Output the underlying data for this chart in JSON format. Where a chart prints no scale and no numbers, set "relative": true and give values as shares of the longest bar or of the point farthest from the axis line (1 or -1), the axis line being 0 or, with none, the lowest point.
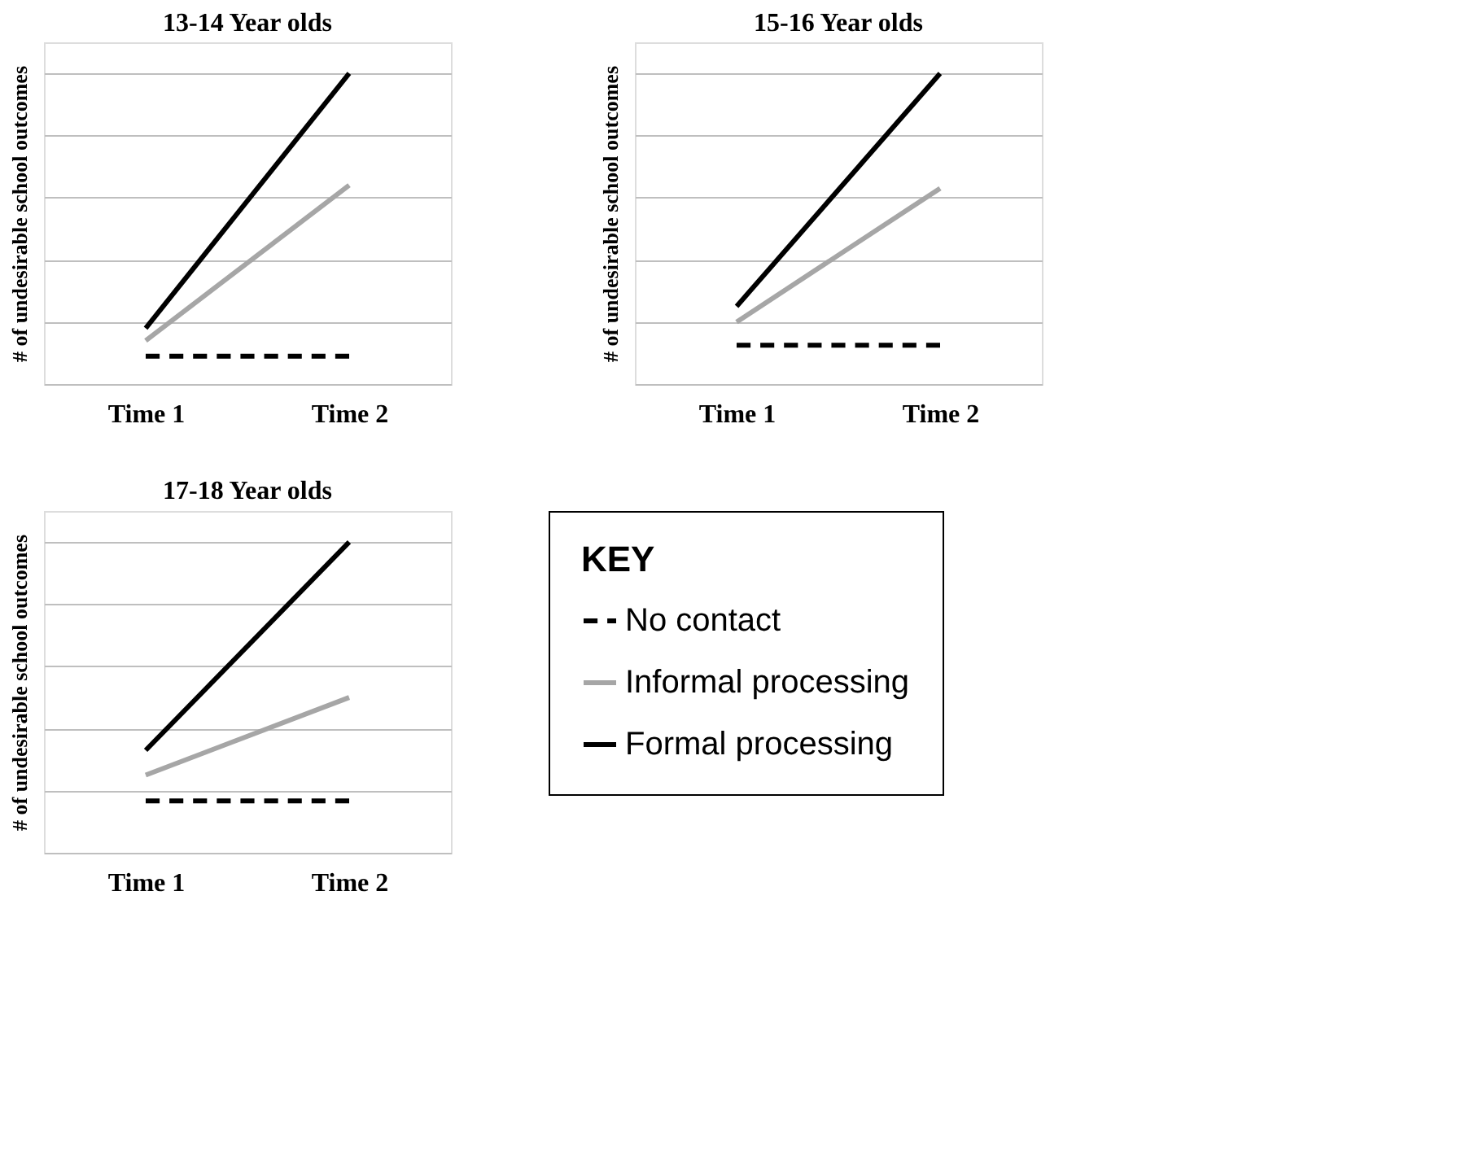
{
  "chart_data": [
    {
      "type": "line",
      "title": "13-14 Year olds",
      "ylabel": "# of undesirable school outcomes",
      "categories": [
        "Time 1",
        "Time 2"
      ],
      "relative": true,
      "grid": "y",
      "legend": false,
      "tick_labels": "x",
      "series": [
        {
          "color": "#000000",
          "line_style": "dashed",
          "values": [
            0.09,
            0.09
          ]
        },
        {
          "color": "#a6a6a6",
          "line_style": "solid",
          "values": [
            0.14,
            0.64
          ]
        },
        {
          "color": "#000000",
          "line_style": "solid",
          "values": [
            0.18,
            1
          ]
        }
      ]
    },
    {
      "type": "line",
      "title": "15-16 Year olds",
      "ylabel": "# of undesirable school outcomes",
      "categories": [
        "Time 1",
        "Time 2"
      ],
      "relative": true,
      "grid": "y",
      "legend": false,
      "tick_labels": "x",
      "series": [
        {
          "color": "#000000",
          "line_style": "dashed",
          "values": [
            0.125,
            0.125
          ]
        },
        {
          "color": "#a6a6a6",
          "line_style": "solid",
          "values": [
            0.2,
            0.63
          ]
        },
        {
          "color": "#000000",
          "line_style": "solid",
          "values": [
            0.25,
            1
          ]
        }
      ]
    },
    {
      "type": "line",
      "title": "17-18 Year olds",
      "ylabel": "# of undesirable school outcomes",
      "categories": [
        "Time 1",
        "Time 2"
      ],
      "relative": true,
      "grid": "y",
      "legend": "right",
      "legend_title": "KEY",
      "tick_labels": "x",
      "series": [
        {
          "name": "No contact",
          "color": "#000000",
          "line_style": "dashed",
          "values": [
            0.167,
            0.167
          ]
        },
        {
          "name": "Informal processing",
          "color": "#a6a6a6",
          "line_style": "solid",
          "values": [
            0.25,
            0.5
          ]
        },
        {
          "name": "Formal processing",
          "color": "#000000",
          "line_style": "solid",
          "values": [
            0.33,
            1
          ]
        }
      ]
    }
  ]
}
